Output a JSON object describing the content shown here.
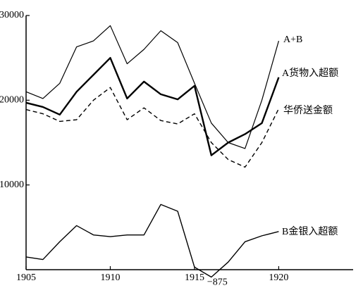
{
  "chart_data": {
    "type": "line",
    "x": [
      1905,
      1906,
      1907,
      1908,
      1909,
      1910,
      1911,
      1912,
      1913,
      1914,
      1915,
      1916,
      1917,
      1918,
      1919,
      1920
    ],
    "xlim": [
      1905,
      1924
    ],
    "xticks": [
      1905,
      1910,
      1915,
      1920
    ],
    "ylim": [
      0,
      30000
    ],
    "yticks": [
      10000,
      20000,
      30000
    ],
    "grid": false,
    "series": [
      {
        "name": "A+B",
        "color": "#000000",
        "linewidth": 1.2,
        "dash": "solid",
        "values": [
          21000,
          20200,
          22000,
          26300,
          27000,
          28800,
          24300,
          26000,
          28200,
          26800,
          22000,
          17300,
          15000,
          14300,
          20000,
          27000
        ]
      },
      {
        "name": "A货物入超额",
        "color": "#000000",
        "linewidth": 2.4,
        "dash": "solid",
        "values": [
          19700,
          19200,
          18300,
          21000,
          23000,
          25000,
          20200,
          22200,
          20700,
          20100,
          21700,
          13500,
          15000,
          16000,
          17300,
          22700
        ]
      },
      {
        "name": "华侨送金额",
        "color": "#000000",
        "linewidth": 1.4,
        "dash": "dashed",
        "values": [
          18900,
          18400,
          17500,
          17700,
          20000,
          21500,
          17700,
          19100,
          17600,
          17200,
          18400,
          15000,
          13000,
          12100,
          15000,
          19000
        ]
      },
      {
        "name": "B金银入超额",
        "color": "#000000",
        "linewidth": 1.4,
        "dash": "solid",
        "values": [
          1500,
          1200,
          3300,
          5200,
          4100,
          3900,
          4100,
          4100,
          7700,
          6900,
          300,
          -875,
          900,
          3300,
          4000,
          4500
        ],
        "value_labels": [
          null,
          null,
          null,
          null,
          null,
          null,
          null,
          null,
          null,
          null,
          null,
          "−875",
          null,
          null,
          null,
          null
        ]
      }
    ]
  }
}
